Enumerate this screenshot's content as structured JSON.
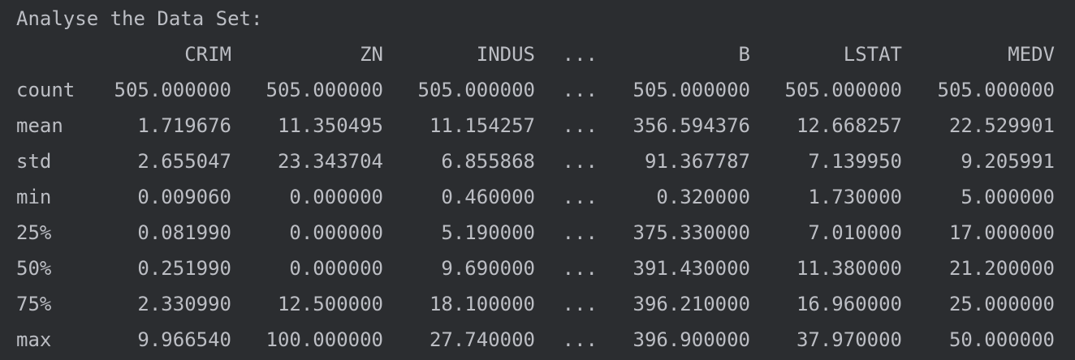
{
  "header": "Analyse the Data Set:",
  "table": {
    "columns": [
      "CRIM",
      "ZN",
      "INDUS",
      "...",
      "B",
      "LSTAT",
      "MEDV"
    ],
    "rows": [
      {
        "index": "count",
        "cells": [
          "505.000000",
          "505.000000",
          "505.000000",
          "...",
          "505.000000",
          "505.000000",
          "505.000000"
        ]
      },
      {
        "index": "mean",
        "cells": [
          "1.719676",
          "11.350495",
          "11.154257",
          "...",
          "356.594376",
          "12.668257",
          "22.529901"
        ]
      },
      {
        "index": "std",
        "cells": [
          "2.655047",
          "23.343704",
          "6.855868",
          "...",
          "91.367787",
          "7.139950",
          "9.205991"
        ]
      },
      {
        "index": "min",
        "cells": [
          "0.009060",
          "0.000000",
          "0.460000",
          "...",
          "0.320000",
          "1.730000",
          "5.000000"
        ]
      },
      {
        "index": "25%",
        "cells": [
          "0.081990",
          "0.000000",
          "5.190000",
          "...",
          "375.330000",
          "7.010000",
          "17.000000"
        ]
      },
      {
        "index": "50%",
        "cells": [
          "0.251990",
          "0.000000",
          "9.690000",
          "...",
          "391.430000",
          "11.380000",
          "21.200000"
        ]
      },
      {
        "index": "75%",
        "cells": [
          "2.330990",
          "12.500000",
          "18.100000",
          "...",
          "396.210000",
          "16.960000",
          "25.000000"
        ]
      },
      {
        "index": "max",
        "cells": [
          "9.966540",
          "100.000000",
          "27.740000",
          "...",
          "396.900000",
          "37.970000",
          "50.000000"
        ]
      }
    ]
  }
}
